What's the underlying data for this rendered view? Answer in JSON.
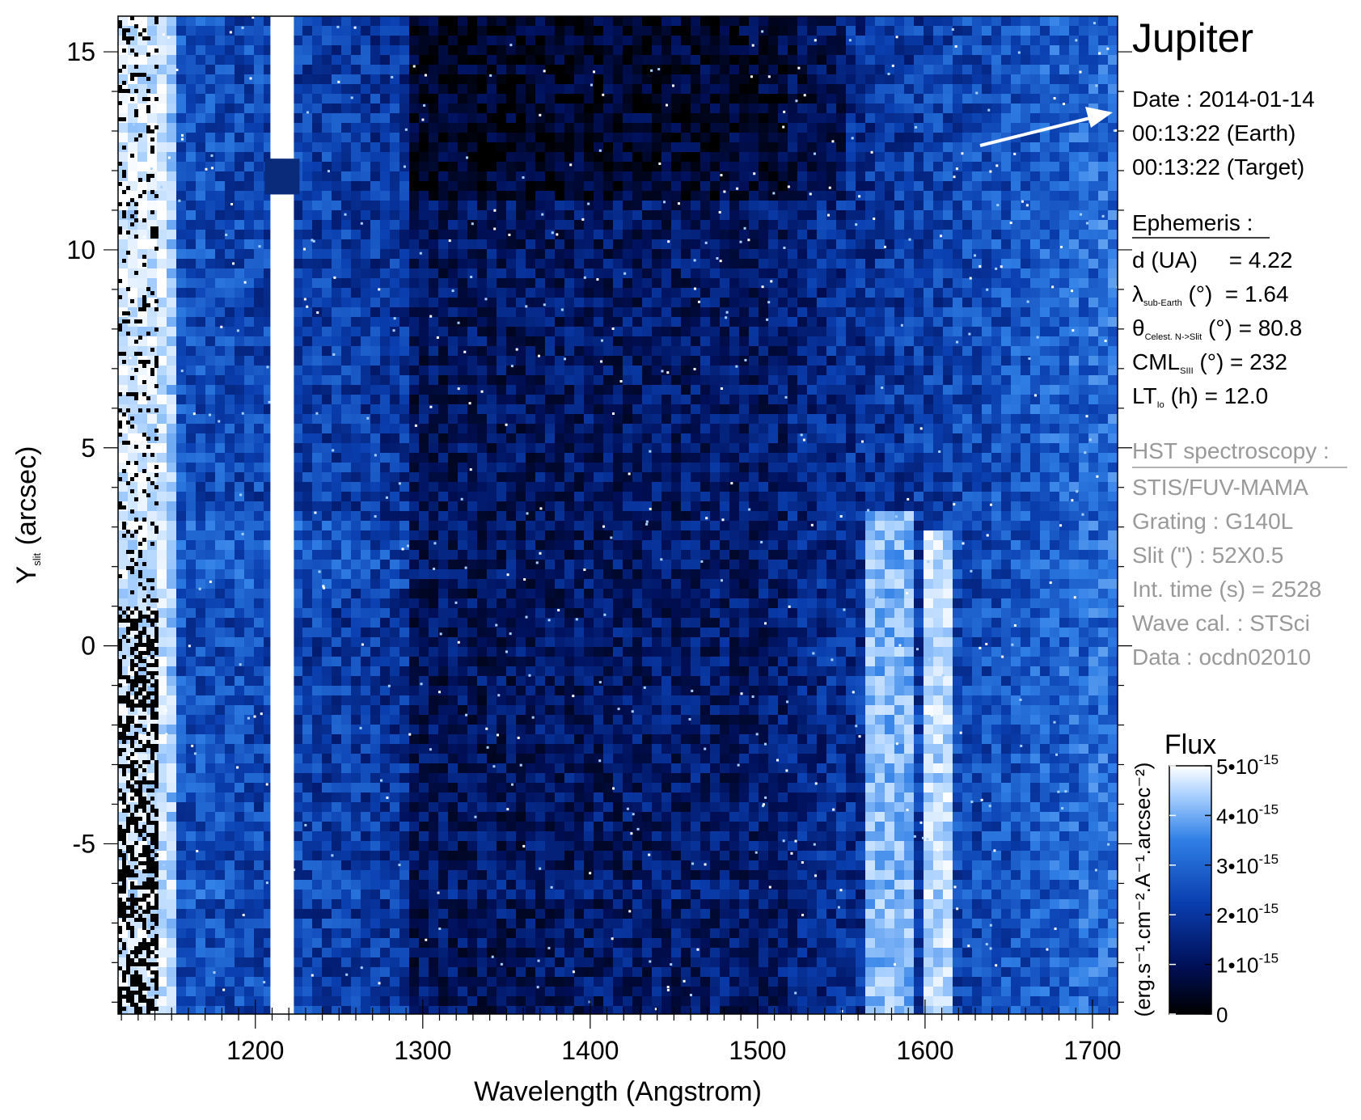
{
  "chart_data": {
    "type": "heatmap",
    "title": "Jupiter",
    "xlabel": "Wavelength (Angstrom)",
    "ylabel": {
      "main": "Y",
      "sub": "slit",
      "rest": " (arcsec)"
    },
    "xlim": [
      1118,
      1715
    ],
    "ylim": [
      -9.3,
      15.9
    ],
    "xticks": [
      1200,
      1300,
      1400,
      1500,
      1600,
      1700
    ],
    "yticks": [
      -5,
      0,
      5,
      10,
      15
    ],
    "xtick_labels": [
      "1200",
      "1300",
      "1400",
      "1500",
      "1600",
      "1700"
    ],
    "ytick_labels": [
      "-5",
      "0",
      "5",
      "10",
      "15"
    ],
    "colormap": [
      "#000000",
      "#00105a",
      "#0a3fb0",
      "#2f7fe6",
      "#a8d0ff",
      "#ffffff"
    ],
    "emission_features": [
      {
        "x_center": 1216,
        "width": 14,
        "y_min": -9.3,
        "y_max": 15.9,
        "gap_y": [
          11.4,
          12.3
        ],
        "level": 1.0
      },
      {
        "x_center": 1134,
        "width": 30,
        "y_min": -9.3,
        "y_max": 15.9,
        "level": 0.9
      },
      {
        "x_center": 1580,
        "width": 30,
        "y_min": -9.3,
        "y_max": 3.5,
        "level": 0.75
      },
      {
        "x_center": 1608,
        "width": 14,
        "y_min": -9.3,
        "y_max": 3.0,
        "level": 0.85
      }
    ],
    "colorbar": {
      "title": "Flux",
      "label": "(erg.s⁻¹.cm⁻².A⁻¹.arcsec⁻²)",
      "range": [
        0,
        5e-15
      ],
      "ticks": [
        0,
        1e-15,
        2e-15,
        3e-15,
        4e-15,
        5e-15
      ],
      "tick_labels": [
        {
          "base": "0",
          "exp": ""
        },
        {
          "base": "1•10",
          "exp": "-15"
        },
        {
          "base": "2•10",
          "exp": "-15"
        },
        {
          "base": "3•10",
          "exp": "-15"
        },
        {
          "base": "4•10",
          "exp": "-15"
        },
        {
          "base": "5•10",
          "exp": "-15"
        }
      ]
    },
    "annotations": {
      "date": [
        "Date : 2014-01-14",
        "00:13:22 (Earth)",
        "00:13:22 (Target)"
      ],
      "ephemeris_title": "Ephemeris :",
      "ephemeris": [
        {
          "main": "d (UA)",
          "sub": "",
          "rest": "     = 4.22"
        },
        {
          "main": "λ",
          "sub": "sub-Earth",
          "rest": " (°)  = 1.64"
        },
        {
          "main": "θ",
          "sub": "Celest. N->Slit",
          "rest": " (°) = 80.8"
        },
        {
          "main": "CML",
          "sub": "SIII",
          "rest": " (°) = 232"
        },
        {
          "main": "LT",
          "sub": "Io",
          "rest": " (h) = 12.0"
        }
      ],
      "hst_title": "HST spectroscopy :",
      "hst": [
        "STIS/FUV-MAMA",
        "Grating : G140L",
        "Slit (\") : 52X0.5",
        "Int. time (s) = 2528",
        "Wave cal. : STSci",
        "Data : ocdn02010"
      ]
    },
    "grid": false,
    "legend": "colorbar right"
  }
}
